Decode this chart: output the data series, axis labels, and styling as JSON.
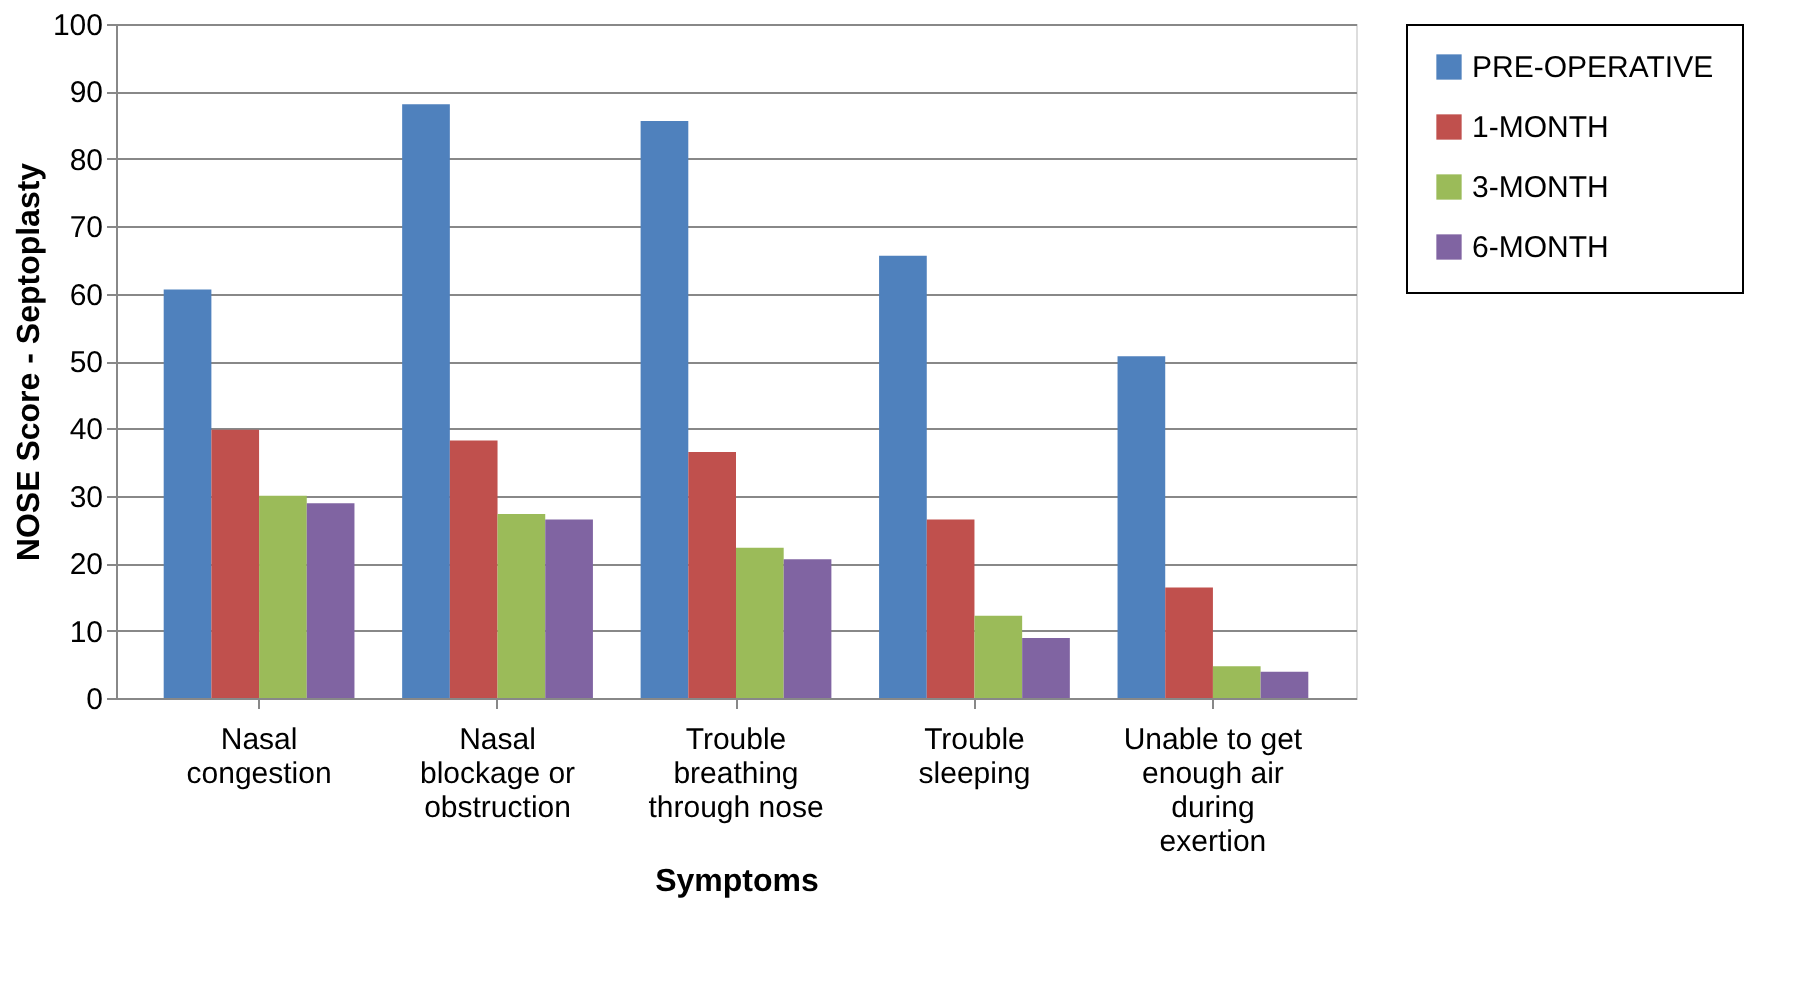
{
  "chart_data": {
    "type": "bar",
    "xlabel": "Symptoms",
    "ylabel": "NOSE Score - Septoplasty",
    "categories": [
      "Nasal congestion",
      "Nasal blockage or obstruction",
      "Trouble breathing through nose",
      "Trouble sleeping",
      "Unable to get enough air during exertion"
    ],
    "series": [
      {
        "name": "PRE-OPERATIVE",
        "color": "#4f81bd",
        "values": [
          60.6,
          88.1,
          85.6,
          65.6,
          50.7
        ]
      },
      {
        "name": "1-MONTH",
        "color": "#c0504d",
        "values": [
          39.8,
          38.2,
          36.5,
          26.5,
          16.4
        ]
      },
      {
        "name": "3-MONTH",
        "color": "#9bbb59",
        "values": [
          30.0,
          27.3,
          22.3,
          12.2,
          4.7
        ]
      },
      {
        "name": "6-MONTH",
        "color": "#8064a2",
        "values": [
          28.9,
          26.5,
          20.6,
          8.9,
          3.9
        ]
      }
    ],
    "ylim": [
      0,
      100
    ],
    "yticks": [
      0,
      10,
      20,
      30,
      40,
      50,
      60,
      70,
      80,
      90,
      100
    ],
    "grid": "y",
    "legend": "right"
  }
}
